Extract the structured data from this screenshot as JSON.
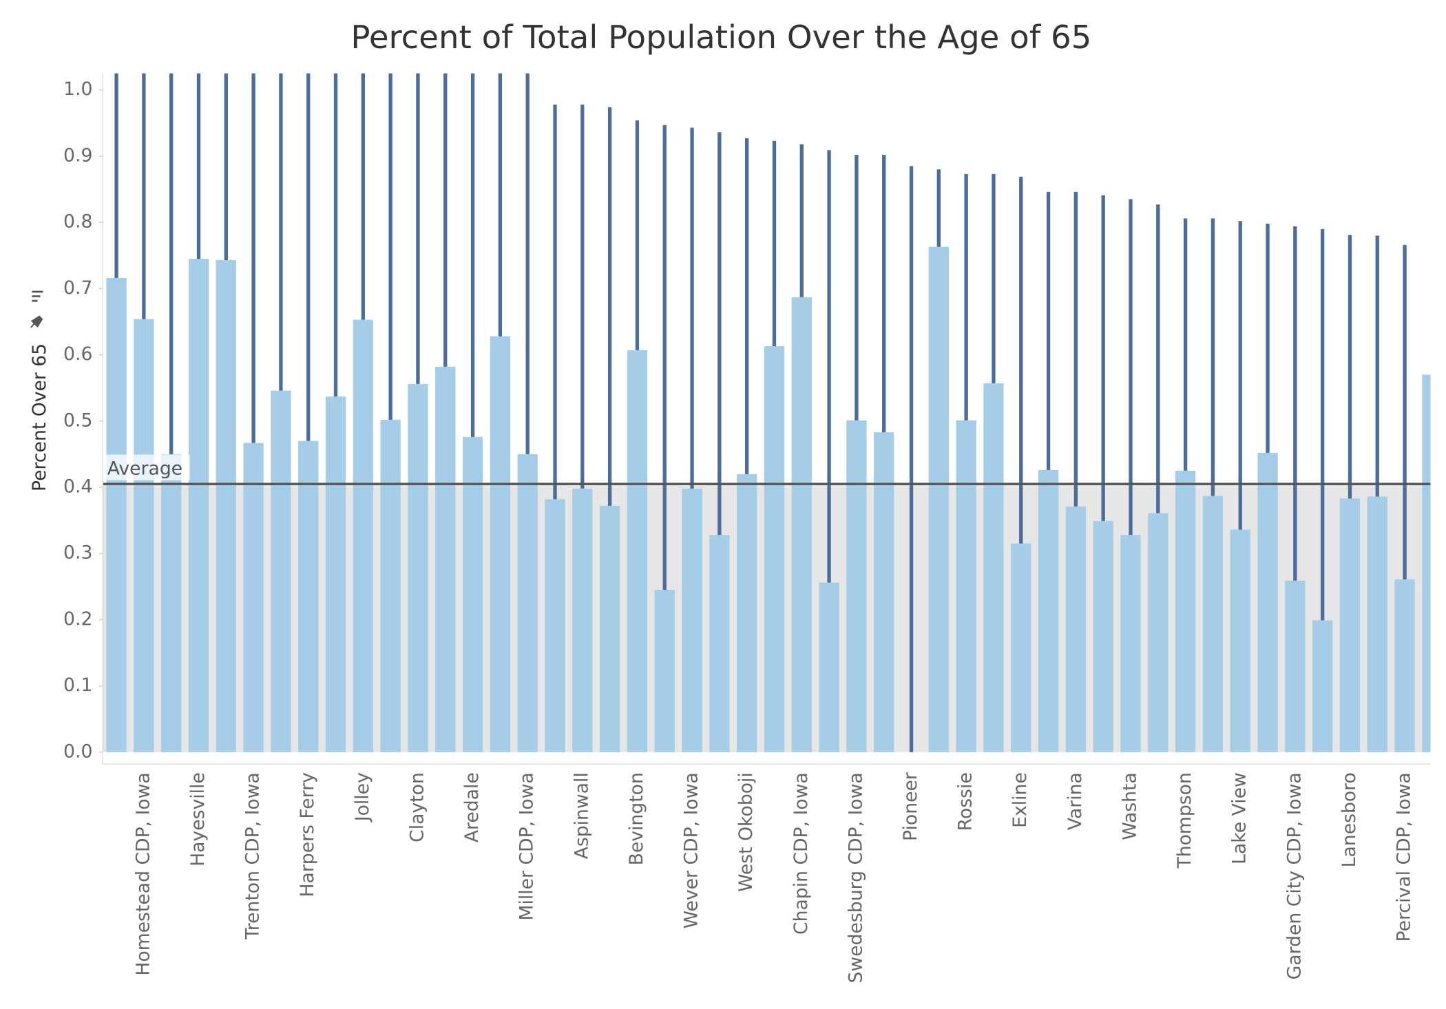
{
  "chart_data": {
    "type": "bar",
    "title": "Percent of Total Population Over the Age of 65",
    "y_label": "Percent Over 65",
    "categories": [
      null,
      "Homestead CDP, Iowa",
      null,
      "Hayesville",
      null,
      "Trenton CDP, Iowa",
      null,
      "Harpers Ferry",
      null,
      "Jolley",
      null,
      "Clayton",
      null,
      "Aredale",
      null,
      "Miller CDP, Iowa",
      null,
      "Aspinwall",
      null,
      "Bevington",
      null,
      "Wever CDP, Iowa",
      null,
      "West Okoboji",
      null,
      "Chapin CDP, Iowa",
      null,
      "Swedesburg CDP, Iowa",
      null,
      "Pioneer",
      null,
      "Rossie",
      null,
      "Exline",
      null,
      "Varina",
      null,
      "Washta",
      null,
      "Thompson",
      null,
      "Lake View",
      null,
      "Garden City CDP, Iowa",
      null,
      "Lanesboro",
      null,
      "Percival CDP, Iowa",
      null
    ],
    "values": [
      0.716,
      0.654,
      0.45,
      0.745,
      0.743,
      0.467,
      0.546,
      0.47,
      0.537,
      0.653,
      0.502,
      0.556,
      0.582,
      0.476,
      0.628,
      0.45,
      0.382,
      0.398,
      0.372,
      0.607,
      0.245,
      0.398,
      0.328,
      0.42,
      0.613,
      0.687,
      0.256,
      0.501,
      0.483,
      0,
      0.763,
      0.501,
      0.557,
      0.315,
      0.426,
      0.371,
      0.349,
      0.328,
      0.361,
      0.425,
      0.387,
      0.336,
      0.452,
      0.259,
      0.199,
      0.383,
      0.386,
      0.261,
      0.57
    ],
    "upper_values": [
      1.03,
      1.03,
      1.03,
      1.03,
      1.03,
      1.03,
      1.03,
      1.03,
      1.03,
      1.03,
      1.03,
      1.03,
      1.03,
      1.03,
      1.03,
      1.03,
      0.978,
      0.978,
      0.974,
      0.954,
      0.947,
      0.943,
      0.936,
      0.927,
      0.923,
      0.918,
      0.909,
      0.902,
      0.902,
      0.885,
      0.88,
      0.873,
      0.873,
      0.869,
      0.846,
      0.846,
      0.841,
      0.835,
      0.827,
      0.806,
      0.806,
      0.802,
      0.798,
      0.794,
      0.79,
      0.781,
      0.78,
      0.766,
      null
    ],
    "color": "#a6cde8",
    "upper_color": "#4a6d9c",
    "reference_line": {
      "label": "Average",
      "value": 0.405
    },
    "ylim": [
      -0.018,
      1.025
    ],
    "yticks": [
      {
        "value": 0,
        "label": "0.0"
      },
      0.1,
      0.2,
      0.3,
      0.4,
      0.5,
      0.6,
      0.7,
      0.8,
      0.9,
      {
        "value": 1,
        "label": "1.0"
      }
    ],
    "grid": false
  }
}
